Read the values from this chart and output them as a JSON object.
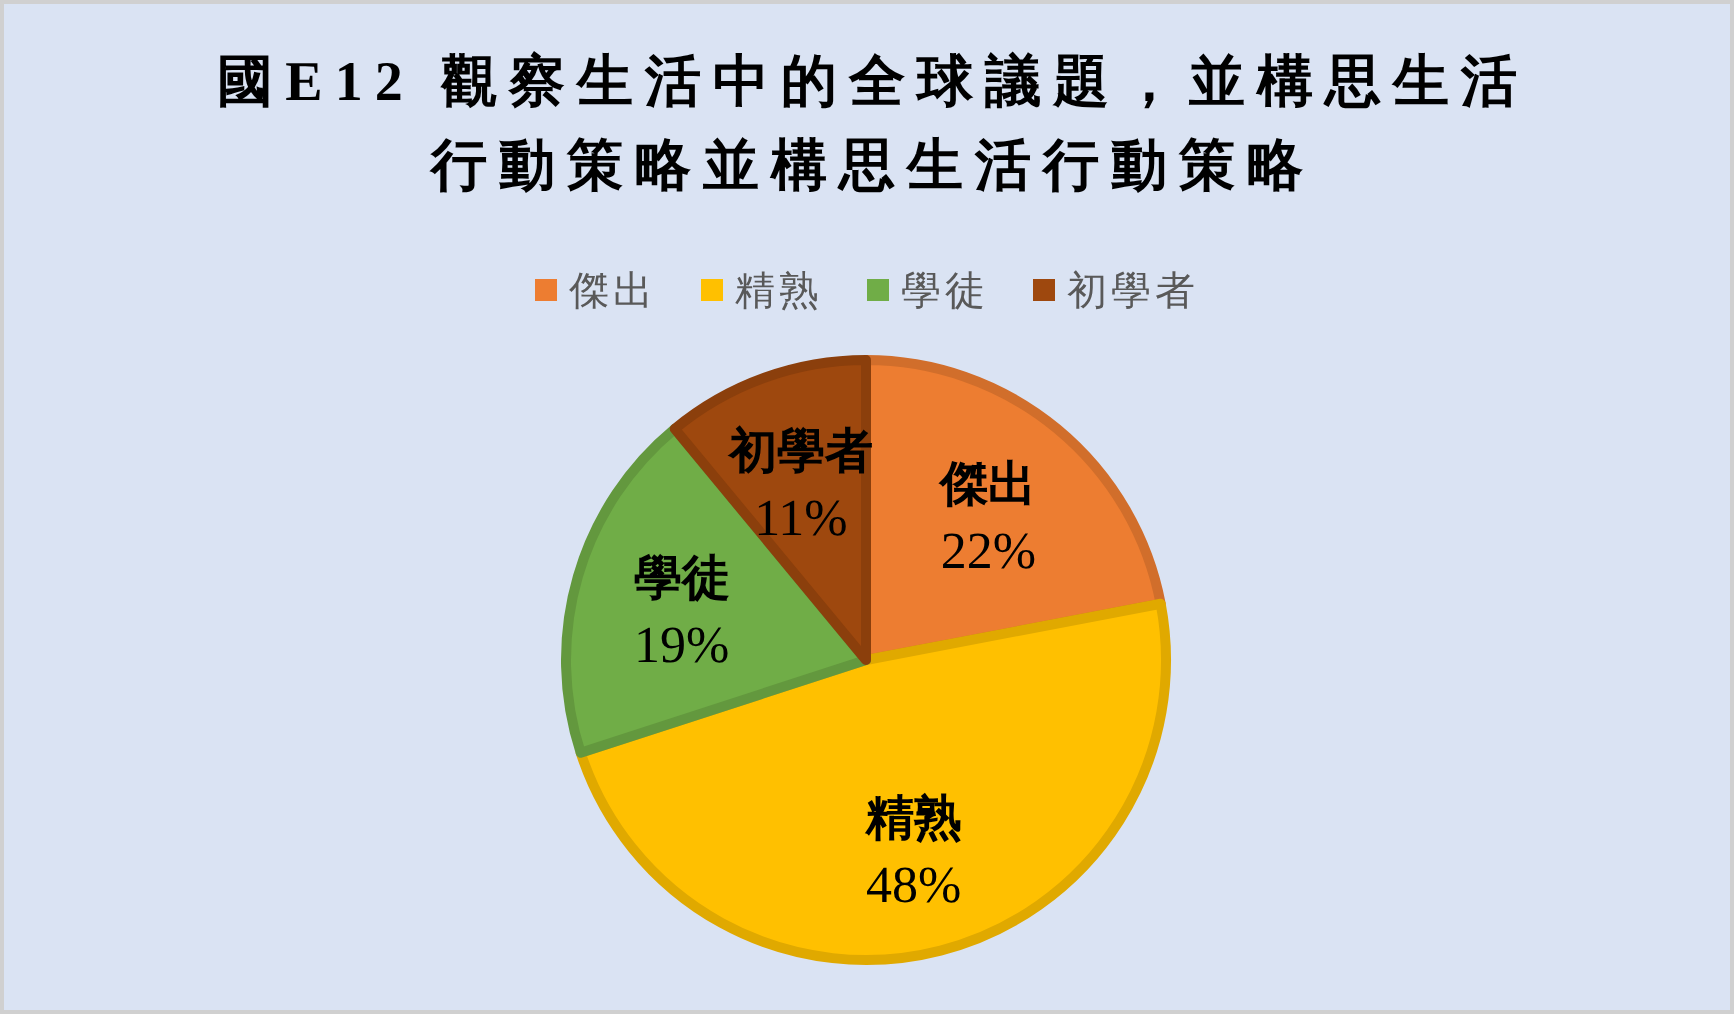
{
  "chart_data": {
    "type": "pie",
    "title": "國E12 觀察生活中的全球議題，並構思生活行動策略並構思生活行動策略",
    "categories": [
      "傑出",
      "精熟",
      "學徒",
      "初學者"
    ],
    "values": [
      22,
      48,
      19,
      11
    ],
    "value_labels": [
      "22%",
      "48%",
      "19%",
      "11%"
    ],
    "colors": [
      "#ed7d31",
      "#ffc000",
      "#70ad47",
      "#9e480e"
    ],
    "legend": "top"
  }
}
